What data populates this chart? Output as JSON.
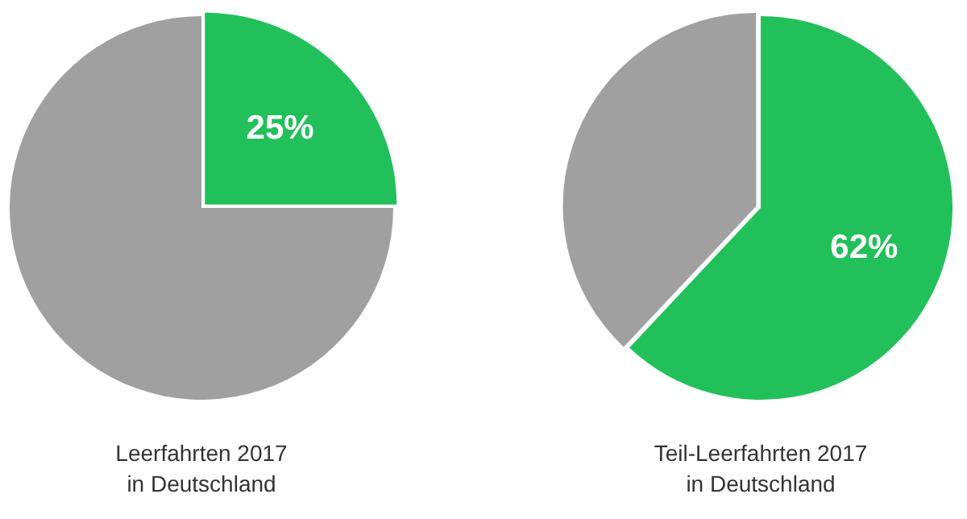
{
  "chart_data": [
    {
      "type": "pie",
      "title": "Leerfahrten 2017\nin Deutschland",
      "categories": [
        null,
        null
      ],
      "values": [
        25,
        75
      ],
      "colors": [
        "#22c05a",
        "#a0a0a0"
      ],
      "value_labels": [
        "25%",
        null
      ],
      "legend": false
    },
    {
      "type": "pie",
      "title": "Teil-Leerfahrten 2017\nin Deutschland",
      "categories": [
        null,
        null
      ],
      "values": [
        62,
        38
      ],
      "colors": [
        "#22c05a",
        "#a0a0a0"
      ],
      "value_labels": [
        "62%",
        null
      ],
      "legend": false
    }
  ]
}
